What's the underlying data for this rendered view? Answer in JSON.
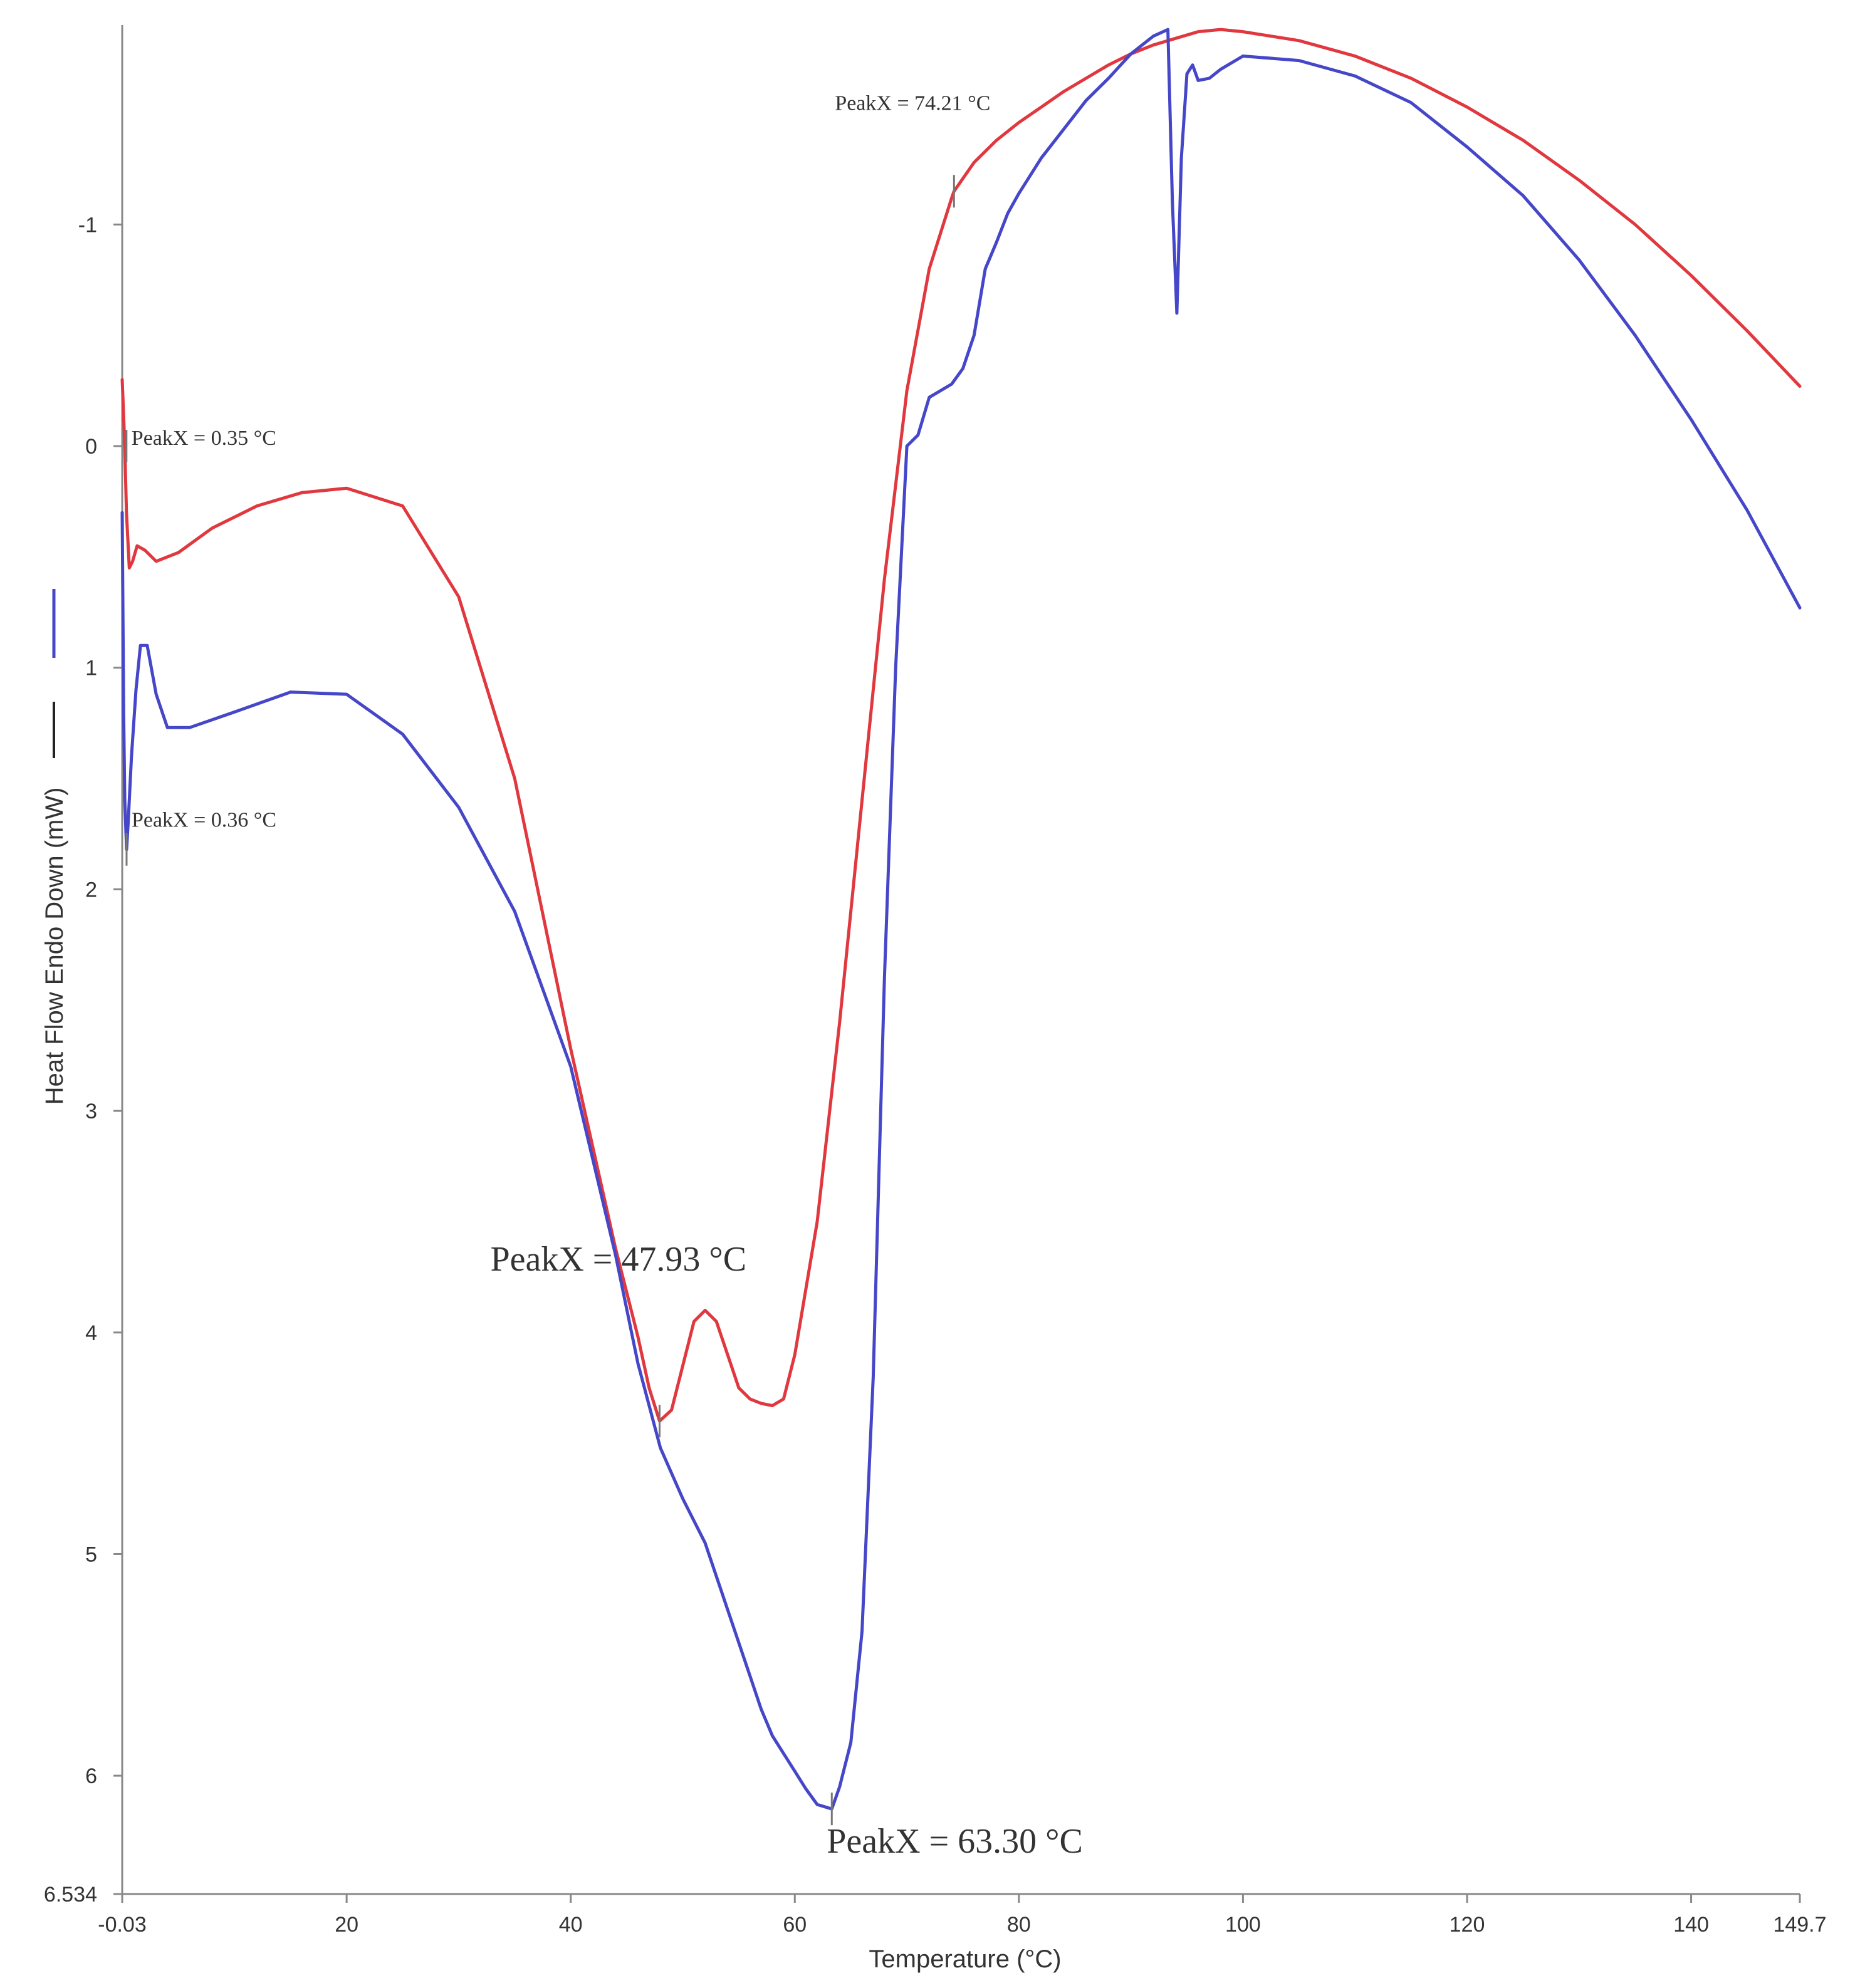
{
  "chart_data": {
    "type": "line",
    "title": "",
    "xlabel": "Temperature (°C)",
    "ylabel": "Heat Flow Endo Down (mW)",
    "xlim": [
      -0.03,
      149.7
    ],
    "ylim": [
      6.534,
      -1.9
    ],
    "x_ticks": [
      -0.03,
      20,
      40,
      60,
      80,
      100,
      120,
      140,
      149.7
    ],
    "x_tick_labels": [
      "-0.03",
      "20",
      "40",
      "60",
      "80",
      "100",
      "120",
      "140",
      "149.7"
    ],
    "y_ticks": [
      -1,
      0,
      1,
      2,
      3,
      4,
      5,
      6,
      6.534
    ],
    "y_tick_labels": [
      "-1",
      "0",
      "1",
      "2",
      "3",
      "4",
      "5",
      "6",
      "6.534"
    ],
    "grid": false,
    "series": [
      {
        "name": "red",
        "color": "#e0383e",
        "x": [
          -0.03,
          0.2,
          0.35,
          0.6,
          0.9,
          1.3,
          2.0,
          3.0,
          5,
          8,
          12,
          16,
          20,
          25,
          30,
          35,
          40,
          44,
          46,
          47,
          47.93,
          49,
          50,
          51,
          52,
          53,
          54,
          55,
          56,
          57,
          58,
          59,
          60,
          62,
          64,
          66,
          68,
          70,
          72,
          74,
          74.21,
          76,
          78,
          80,
          82,
          84,
          86,
          88,
          90,
          92,
          94,
          96,
          98,
          100,
          105,
          110,
          115,
          120,
          125,
          130,
          135,
          140,
          145,
          149.7
        ],
        "y": [
          -0.3,
          0.0,
          0.3,
          0.55,
          0.52,
          0.45,
          0.47,
          0.52,
          0.48,
          0.37,
          0.27,
          0.21,
          0.19,
          0.27,
          0.68,
          1.5,
          2.72,
          3.62,
          4.02,
          4.25,
          4.4,
          4.35,
          4.15,
          3.95,
          3.9,
          3.95,
          4.1,
          4.25,
          4.3,
          4.32,
          4.33,
          4.3,
          4.1,
          3.5,
          2.6,
          1.6,
          0.6,
          -0.25,
          -0.8,
          -1.12,
          -1.15,
          -1.28,
          -1.38,
          -1.46,
          -1.53,
          -1.6,
          -1.66,
          -1.72,
          -1.77,
          -1.81,
          -1.84,
          -1.87,
          -1.88,
          -1.87,
          -1.83,
          -1.76,
          -1.66,
          -1.53,
          -1.38,
          -1.2,
          -1.0,
          -0.77,
          -0.52,
          -0.27
        ]
      },
      {
        "name": "blue",
        "color": "#4547c8",
        "x": [
          -0.03,
          0.1,
          0.2,
          0.36,
          0.5,
          0.8,
          1.2,
          1.6,
          2.2,
          3.0,
          4.0,
          6,
          10,
          15,
          20,
          25,
          30,
          35,
          40,
          44,
          46,
          48,
          50,
          52,
          54,
          56,
          57,
          58,
          59,
          60,
          61,
          62,
          63.3,
          64,
          65,
          66,
          67,
          68,
          69,
          70,
          71,
          72,
          73,
          74,
          75,
          76,
          77,
          78,
          79,
          80,
          82,
          84,
          86,
          88,
          90,
          92,
          93.3,
          93.7,
          94.1,
          94.5,
          95.0,
          95.5,
          96,
          97,
          98,
          100,
          105,
          110,
          115,
          120,
          125,
          130,
          135,
          140,
          145,
          149.7
        ],
        "y": [
          0.3,
          1.2,
          1.6,
          1.82,
          1.7,
          1.4,
          1.1,
          0.9,
          0.9,
          1.12,
          1.27,
          1.27,
          1.2,
          1.11,
          1.12,
          1.3,
          1.63,
          2.1,
          2.8,
          3.65,
          4.14,
          4.52,
          4.75,
          4.95,
          5.25,
          5.55,
          5.7,
          5.82,
          5.9,
          5.98,
          6.06,
          6.13,
          6.15,
          6.05,
          5.85,
          5.35,
          4.2,
          2.4,
          1.0,
          0.0,
          -0.05,
          -0.22,
          -0.25,
          -0.28,
          -0.35,
          -0.5,
          -0.8,
          -0.92,
          -1.05,
          -1.14,
          -1.3,
          -1.43,
          -1.56,
          -1.66,
          -1.77,
          -1.85,
          -1.88,
          -1.1,
          -0.6,
          -1.3,
          -1.68,
          -1.72,
          -1.65,
          -1.66,
          -1.7,
          -1.76,
          -1.74,
          -1.67,
          -1.55,
          -1.35,
          -1.13,
          -0.84,
          -0.5,
          -0.12,
          0.29,
          0.73
        ]
      }
    ],
    "annotations": [
      {
        "text": "PeakX = 0.35 °C",
        "x": 0.35,
        "y": 0.0,
        "size": "small",
        "series": "red"
      },
      {
        "text": "PeakX = 0.36 °C",
        "x": 0.36,
        "y": 1.82,
        "size": "small",
        "series": "blue"
      },
      {
        "text": "PeakX = 74.21 °C",
        "x": 74.21,
        "y": -1.15,
        "size": "small",
        "series": "red"
      },
      {
        "text": "PeakX = 47.93 °C",
        "x": 47.93,
        "y": 4.4,
        "size": "large",
        "series": "red"
      },
      {
        "text": "PeakX = 63.30 °C",
        "x": 63.3,
        "y": 6.15,
        "size": "large",
        "series": "blue"
      }
    ]
  }
}
